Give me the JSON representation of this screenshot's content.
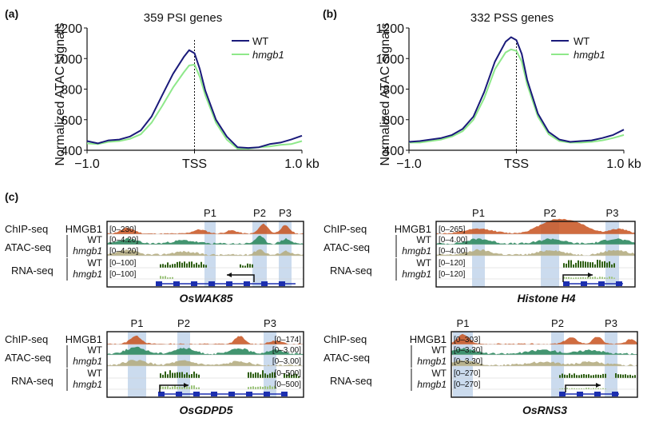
{
  "panel_labels": {
    "a": "(a)",
    "b": "(b)",
    "c": "(c)"
  },
  "colors": {
    "wt": "#1a1a7a",
    "hmgb1": "#8ee88a",
    "chip": "#c8521e",
    "atac_wt": "#2f8a60",
    "atac_hmgb1": "#b5ad82",
    "rna_wt": "#2e5f12",
    "rna_hmgb1": "#9cc47a",
    "highlight": "#b9cfe8",
    "gene": "#1c2fb0"
  },
  "chart_data": [
    {
      "type": "line",
      "title": "359 PSI genes",
      "ylabel": "Normalized ATAC signals",
      "xlabel": "",
      "ylim": [
        400,
        1200
      ],
      "yticks": [
        400,
        600,
        800,
        1000,
        1200
      ],
      "xticklabels": [
        "−1.0",
        "TSS",
        "1.0 kb"
      ],
      "xlim": [
        -1.0,
        1.0
      ],
      "legend": "top-right",
      "tss_marker": "dashed vertical line at TSS",
      "x": [
        -1.0,
        -0.9,
        -0.8,
        -0.7,
        -0.6,
        -0.5,
        -0.4,
        -0.3,
        -0.2,
        -0.1,
        -0.05,
        0.0,
        0.05,
        0.1,
        0.2,
        0.3,
        0.4,
        0.5,
        0.6,
        0.7,
        0.8,
        0.9,
        1.0
      ],
      "series": [
        {
          "name": "WT",
          "values": [
            460,
            445,
            465,
            470,
            490,
            530,
            620,
            760,
            900,
            1010,
            1055,
            1035,
            930,
            790,
            600,
            490,
            420,
            415,
            420,
            440,
            450,
            470,
            495
          ]
        },
        {
          "name": "hmgb1",
          "values": [
            445,
            440,
            455,
            460,
            475,
            505,
            580,
            690,
            810,
            910,
            955,
            960,
            880,
            760,
            580,
            470,
            410,
            410,
            420,
            425,
            435,
            440,
            460
          ]
        }
      ]
    },
    {
      "type": "line",
      "title": "332 PSS genes",
      "ylabel": "Normalized ATAC signals",
      "xlabel": "",
      "ylim": [
        400,
        1200
      ],
      "yticks": [
        400,
        600,
        800,
        1000,
        1200
      ],
      "xticklabels": [
        "−1.0",
        "TSS",
        "1.0 kb"
      ],
      "xlim": [
        -1.0,
        1.0
      ],
      "legend": "top-right",
      "tss_marker": "dashed vertical line at TSS",
      "x": [
        -1.0,
        -0.9,
        -0.8,
        -0.7,
        -0.6,
        -0.5,
        -0.4,
        -0.3,
        -0.2,
        -0.1,
        -0.05,
        0.0,
        0.05,
        0.1,
        0.2,
        0.3,
        0.4,
        0.5,
        0.6,
        0.7,
        0.8,
        0.9,
        1.0
      ],
      "series": [
        {
          "name": "WT",
          "values": [
            455,
            460,
            470,
            480,
            500,
            540,
            620,
            780,
            980,
            1110,
            1140,
            1120,
            1030,
            860,
            640,
            520,
            470,
            455,
            460,
            465,
            480,
            500,
            535
          ]
        },
        {
          "name": "hmgb1",
          "values": [
            450,
            450,
            460,
            470,
            490,
            525,
            600,
            740,
            930,
            1040,
            1060,
            1050,
            980,
            830,
            620,
            505,
            460,
            450,
            450,
            455,
            465,
            480,
            500
          ]
        }
      ]
    }
  ],
  "legend_labels": {
    "wt": "WT",
    "hmgb1": "hmgb1"
  },
  "track_labels": {
    "chip": "ChIP-seq",
    "chip_factor": "HMGB1",
    "atac": "ATAC-seq",
    "rna": "RNA-seq",
    "wt": "WT",
    "hmgb1": "hmgb1"
  },
  "browser_panels": [
    {
      "gene": "OsWAK85",
      "peaks": [
        "P1",
        "P2",
        "P3"
      ],
      "ranges": [
        "[0–230]",
        "[0–4.20]",
        "[0–4.20]",
        "[0–100]",
        "[0–100]"
      ]
    },
    {
      "gene": "Histone H4",
      "peaks": [
        "P1",
        "P2",
        "P3"
      ],
      "ranges": [
        "[0–265]",
        "[0–4.00]",
        "[0–4.00]",
        "[0–120]",
        "[0–120]"
      ]
    },
    {
      "gene": "OsGDPD5",
      "peaks": [
        "P1",
        "P2",
        "P3"
      ],
      "ranges": [
        "[0–174]",
        "[0–3.00]",
        "[0–3.00]",
        "[0–500]",
        "[0–500]"
      ]
    },
    {
      "gene": "OsRNS3",
      "peaks": [
        "P1",
        "P2",
        "P3"
      ],
      "ranges": [
        "[0–303]",
        "[0–3.30]",
        "[0–3.30]",
        "[0–270]",
        "[0–270]"
      ]
    }
  ]
}
